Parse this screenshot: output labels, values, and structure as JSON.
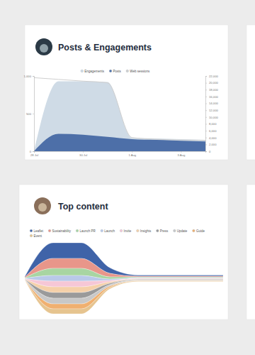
{
  "chart_data": [
    {
      "type": "area",
      "title": "Posts & Engagements",
      "categories": [
        "28 Jul",
        null,
        "30 Jul",
        null,
        "1 Aug",
        null,
        "3 Aug",
        null
      ],
      "series": [
        {
          "name": "Engagements",
          "type": "area",
          "color": "#cfdbe6",
          "values": [
            0,
            930,
            930,
            920,
            180,
            170,
            160,
            150
          ]
        },
        {
          "name": "Posts",
          "type": "area",
          "color": "#4d6fa8",
          "values": [
            0,
            230,
            220,
            190,
            160,
            150,
            140,
            130
          ]
        },
        {
          "name": "Web sessions",
          "type": "line",
          "axis": "y2",
          "color": "#cfcfcf",
          "values": [
            21500,
            21000,
            20500,
            20000,
            4000,
            3500,
            3300,
            3200
          ]
        }
      ],
      "ylim": [
        0,
        1000
      ],
      "yticks": [
        0,
        500,
        {
          "value": 1000,
          "label": "1,000"
        }
      ],
      "y2lim": [
        0,
        22000
      ],
      "y2ticks": [
        0,
        {
          "value": 2000,
          "label": "2,000"
        },
        {
          "value": 4000,
          "label": "4,000"
        },
        {
          "value": 6000,
          "label": "6,000"
        },
        {
          "value": 8000,
          "label": "8,000"
        },
        {
          "value": 10000,
          "label": "10,000"
        },
        {
          "value": 12000,
          "label": "12,000"
        },
        {
          "value": 14000,
          "label": "14,000"
        },
        {
          "value": 16000,
          "label": "16,000"
        },
        {
          "value": 18000,
          "label": "18,000"
        },
        {
          "value": 20000,
          "label": "20,000"
        },
        {
          "value": 22000,
          "label": "22,000"
        }
      ],
      "grid": false,
      "legend": "top"
    },
    {
      "type": "streamgraph",
      "title": "Top content",
      "categories": [
        null,
        null,
        null,
        null,
        null,
        null,
        null,
        null
      ],
      "series": [
        {
          "name": "Leaflet",
          "color": "#3f63a8",
          "values": [
            1,
            22,
            22,
            8,
            1.5,
            1.5,
            1.5,
            1.5
          ]
        },
        {
          "name": "Sustainability",
          "color": "#e8968a",
          "values": [
            0.8,
            14,
            14,
            5,
            1.2,
            1.2,
            1.2,
            1.2
          ]
        },
        {
          "name": "Launch PR",
          "color": "#a8d5a2",
          "values": [
            0.6,
            10,
            10,
            3,
            1,
            1,
            1,
            1
          ]
        },
        {
          "name": "Launch",
          "color": "#b9c9e9",
          "values": [
            0.5,
            8,
            8,
            2,
            0.8,
            0.8,
            0.8,
            0.8
          ]
        },
        {
          "name": "Invite",
          "color": "#f6c7d6",
          "values": [
            0.4,
            8,
            8,
            2,
            0.8,
            0.8,
            0.8,
            0.8
          ]
        },
        {
          "name": "Insights",
          "color": "#f5d0a9",
          "values": [
            0.4,
            8,
            8,
            2,
            0.8,
            0.8,
            0.8,
            0.8
          ]
        },
        {
          "name": "Press",
          "color": "#9a9a9a",
          "values": [
            0.3,
            8,
            8,
            2,
            0.8,
            0.8,
            0.8,
            0.8
          ]
        },
        {
          "name": "Update",
          "color": "#c8c8c8",
          "values": [
            0.3,
            8,
            8,
            2,
            0.8,
            0.8,
            0.8,
            0.8
          ]
        },
        {
          "name": "Guide",
          "color": "#f0b070",
          "values": [
            0.3,
            7,
            7,
            2,
            0.7,
            0.7,
            0.7,
            0.7
          ]
        },
        {
          "name": "Event",
          "color": "#e6c48f",
          "values": [
            0.2,
            7,
            7,
            2,
            0.7,
            0.7,
            0.7,
            0.7
          ]
        }
      ],
      "ylim": [
        -55,
        55
      ],
      "tick_labels": false,
      "legend": "top"
    }
  ]
}
